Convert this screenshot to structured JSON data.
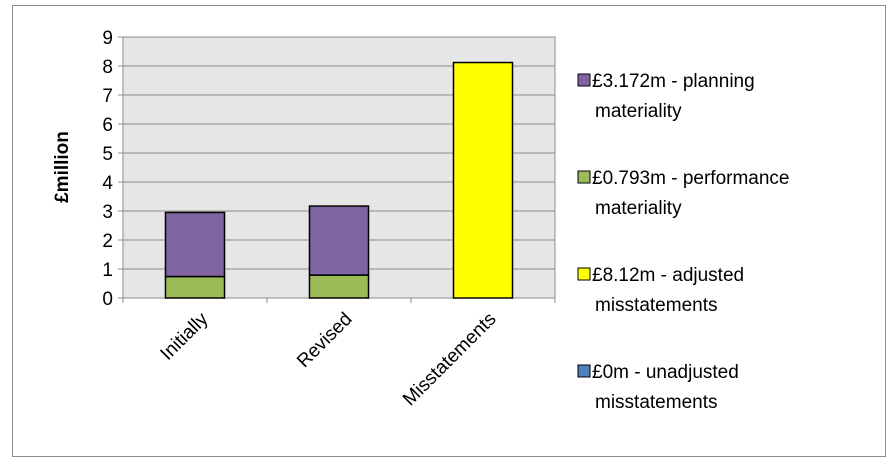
{
  "chart_data": {
    "type": "bar",
    "stacked": true,
    "categories": [
      "Initially",
      "Revised",
      "Misstatements"
    ],
    "ylabel": "£million",
    "xlabel": "",
    "ylim": [
      0,
      9
    ],
    "yticks": [
      0,
      1,
      2,
      3,
      4,
      5,
      6,
      7,
      8,
      9
    ],
    "grid": true,
    "legend_position": "right",
    "series": [
      {
        "name": "£0.793m - performance materiality",
        "legend_lines": [
          "£0.793m - performance",
          "materiality"
        ],
        "color": "#9bbb59",
        "values": [
          0.74,
          0.79,
          0
        ]
      },
      {
        "name": "£3.172m - planning materiality",
        "legend_lines": [
          "£3.172m - planning",
          "materiality"
        ],
        "color": "#8064a2",
        "values": [
          2.21,
          2.38,
          0
        ]
      },
      {
        "name": "£8.12m - adjusted misstatements",
        "legend_lines": [
          "£8.12m - adjusted",
          "misstatements"
        ],
        "color": "#ffff00",
        "values": [
          0,
          0,
          8.12
        ]
      },
      {
        "name": "£0m - unadjusted misstatements",
        "legend_lines": [
          "£0m - unadjusted",
          "misstatements"
        ],
        "color": "#4f81bd",
        "values": [
          0,
          0,
          0
        ]
      }
    ],
    "legend_order": [
      1,
      0,
      2,
      3
    ]
  }
}
